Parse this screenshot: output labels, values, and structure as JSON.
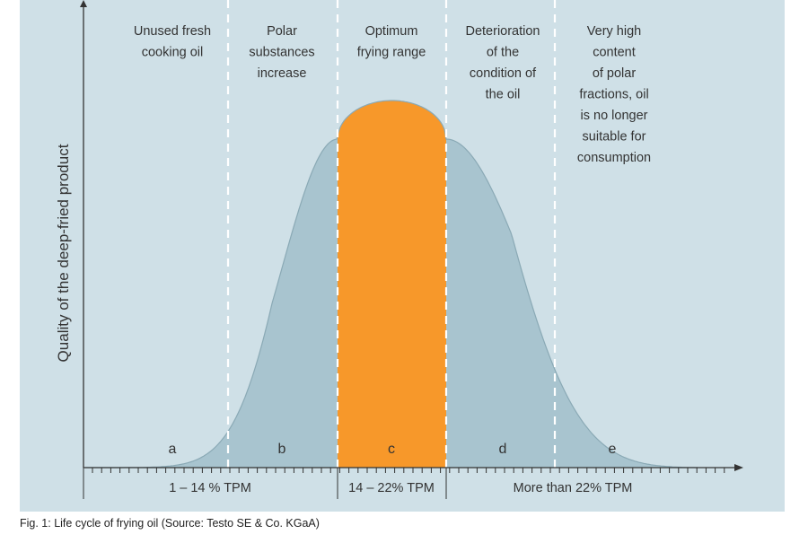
{
  "colors": {
    "panel": "#cfe0e7",
    "curve_fill": "#a8c4cf",
    "optimum_fill": "#f7982a",
    "divider": "#ffffff",
    "axis": "#333333",
    "text": "#333333"
  },
  "axis": {
    "ylabel": "Quality of the deep-fried product"
  },
  "zones": [
    {
      "letter": "a",
      "title_lines": [
        "Unused fresh",
        "cooking oil"
      ]
    },
    {
      "letter": "b",
      "title_lines": [
        "Polar",
        "substances",
        "increase"
      ]
    },
    {
      "letter": "c",
      "title_lines": [
        "Optimum",
        "frying range"
      ]
    },
    {
      "letter": "d",
      "title_lines": [
        "Deterioration",
        "of the",
        "condition of",
        "the oil"
      ]
    },
    {
      "letter": "e",
      "title_lines": [
        "Very high",
        "content",
        "of polar",
        "fractions, oil",
        "is no longer",
        "suitable for",
        "consumption"
      ]
    }
  ],
  "tpm_ranges": [
    "1 – 14 % TPM",
    "14 – 22% TPM",
    "More than 22% TPM"
  ],
  "caption": "Fig. 1: Life cycle of frying oil (Source: Testo SE & Co. KGaA)"
}
